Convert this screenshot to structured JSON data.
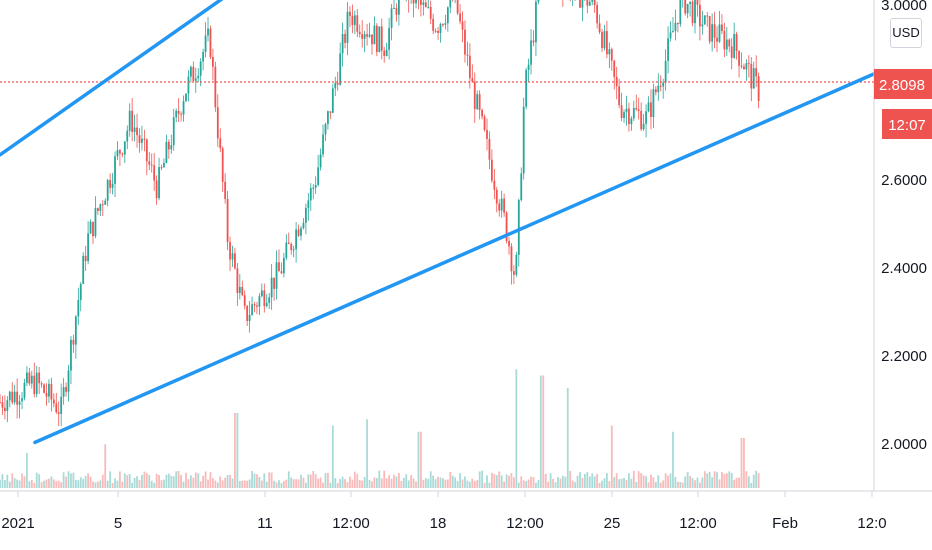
{
  "currency": "USD",
  "price_badge": {
    "value": "2.8098",
    "countdown": "12:07",
    "color": "#ef5350"
  },
  "colors": {
    "up": "#26a69a",
    "down": "#ef5350",
    "trendline": "#2196f3",
    "axis_text": "#131722",
    "border": "#d1d4dc"
  },
  "chart_data": {
    "type": "candlestick",
    "y_ticks": [
      "3.0000",
      "2.6000",
      "2.4000",
      "2.2000",
      "2.0000"
    ],
    "x_ticks": [
      "2021",
      "5",
      "11",
      "12:00",
      "18",
      "12:00",
      "25",
      "12:00",
      "Feb",
      "12:0"
    ],
    "ylim": [
      1.9,
      3.02
    ],
    "last_price": 2.8098,
    "close_path": [
      [
        0,
        2.02
      ],
      [
        4,
        2.07
      ],
      [
        7,
        2.0
      ],
      [
        10,
        2.42
      ],
      [
        15,
        2.72
      ],
      [
        18,
        2.55
      ],
      [
        21,
        2.78
      ],
      [
        24,
        2.92
      ],
      [
        26,
        2.43
      ],
      [
        28,
        2.23
      ],
      [
        32,
        2.34
      ],
      [
        36,
        2.56
      ],
      [
        40,
        2.98
      ],
      [
        44,
        2.9
      ],
      [
        46,
        3.05
      ],
      [
        50,
        2.95
      ],
      [
        52,
        3.02
      ],
      [
        54,
        2.8
      ],
      [
        56,
        2.62
      ],
      [
        58,
        2.44
      ],
      [
        59,
        2.32
      ],
      [
        60,
        2.78
      ],
      [
        62,
        3.08
      ],
      [
        65,
        3.05
      ],
      [
        68,
        3.0
      ],
      [
        71,
        2.75
      ],
      [
        74,
        2.72
      ],
      [
        76,
        2.85
      ],
      [
        78,
        3.02
      ],
      [
        81,
        2.94
      ],
      [
        84,
        2.9
      ],
      [
        87,
        2.78
      ]
    ],
    "trendlines": [
      {
        "name": "upper",
        "from": [
          0,
          2.63
        ],
        "to": [
          31,
          3.1
        ]
      },
      {
        "name": "lower",
        "from": [
          4,
          1.92
        ],
        "to": [
          100,
          2.83
        ]
      }
    ],
    "volume_spikes": [
      [
        3,
        0.28
      ],
      [
        12,
        0.35
      ],
      [
        27,
        0.6
      ],
      [
        38,
        0.5
      ],
      [
        42,
        0.55
      ],
      [
        48,
        0.45
      ],
      [
        59,
        0.95
      ],
      [
        62,
        0.9
      ],
      [
        65,
        0.8
      ],
      [
        70,
        0.5
      ],
      [
        77,
        0.45
      ],
      [
        85,
        0.4
      ]
    ]
  }
}
